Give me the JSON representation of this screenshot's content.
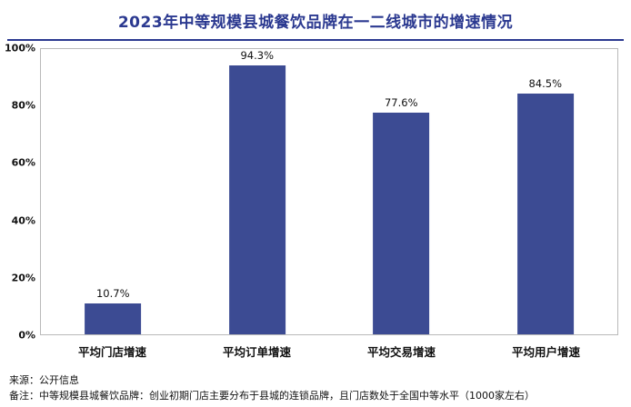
{
  "title": "2023年中等规模县城餐饮品牌在一二线城市的增速情况",
  "chart_data": {
    "type": "bar",
    "title": "2023年中等规模县城餐饮品牌在一二线城市的增速情况",
    "categories": [
      "平均门店增速",
      "平均订单增速",
      "平均交易增速",
      "平均用户增速"
    ],
    "values": [
      10.7,
      94.3,
      77.6,
      84.5
    ],
    "value_labels": [
      "10.7%",
      "94.3%",
      "77.6%",
      "84.5%"
    ],
    "xlabel": "",
    "ylabel": "",
    "ylim": [
      0,
      100
    ],
    "yticks": [
      "0%",
      "20%",
      "40%",
      "60%",
      "80%",
      "100%"
    ],
    "grid": false,
    "legend_position": "none",
    "bar_color": "#3c4b93"
  },
  "colors": {
    "title": "#2b3990",
    "divider": "#2b3990",
    "bar": "#3c4b93",
    "plot_border": "#b9b9b9"
  },
  "footer": {
    "source": "来源：公开信息",
    "note": "备注：中等规模县城餐饮品牌：创业初期门店主要分布于县城的连锁品牌，且门店数处于全国中等水平（1000家左右）"
  }
}
